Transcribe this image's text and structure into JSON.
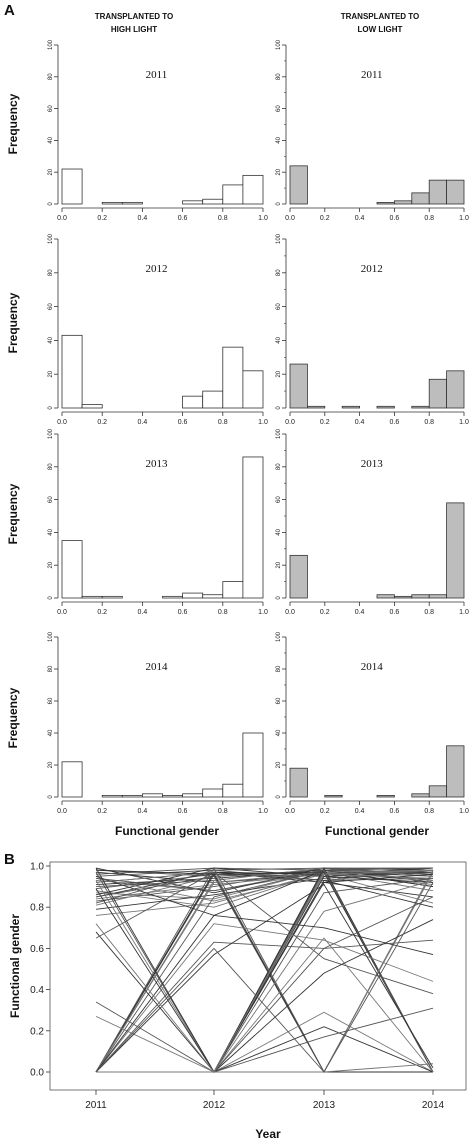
{
  "panel_a": {
    "label": "A",
    "col_titles": [
      [
        "TRANSPLANTED TO",
        "HIGH LIGHT"
      ],
      [
        "TRANSPLANTED TO",
        "LOW LIGHT"
      ]
    ],
    "y_label": "Frequency",
    "x_label": "Functional gender"
  },
  "panel_b": {
    "label": "B",
    "y_label": "Functional gender",
    "x_label": "Year"
  },
  "chart_data": [
    {
      "type": "bar",
      "panel": "A",
      "title": "2011",
      "condition": "HIGH LIGHT",
      "bin_edges": [
        0.0,
        0.1,
        0.2,
        0.3,
        0.4,
        0.5,
        0.6,
        0.7,
        0.8,
        0.9,
        1.0
      ],
      "values": [
        22,
        0,
        1,
        1,
        0,
        0,
        2,
        3,
        12,
        18
      ],
      "ylim": [
        0,
        100
      ],
      "yticks": [
        0,
        20,
        40,
        60,
        80,
        100
      ],
      "xticks": [
        "0.0",
        "0.2",
        "0.4",
        "0.6",
        "0.8",
        "1.0"
      ],
      "fill": "#ffffff"
    },
    {
      "type": "bar",
      "panel": "A",
      "title": "2011",
      "condition": "LOW LIGHT",
      "bin_edges": [
        0.0,
        0.1,
        0.2,
        0.3,
        0.4,
        0.5,
        0.6,
        0.7,
        0.8,
        0.9,
        1.0
      ],
      "values": [
        24,
        0,
        0,
        0,
        0,
        1,
        2,
        7,
        15,
        15
      ],
      "ylim": [
        0,
        100
      ],
      "yticks": [
        0,
        20,
        40,
        60,
        80,
        100
      ],
      "xticks": [
        "0.0",
        "0.2",
        "0.4",
        "0.6",
        "0.8",
        "1.0"
      ],
      "fill": "#bdbdbd"
    },
    {
      "type": "bar",
      "panel": "A",
      "title": "2012",
      "condition": "HIGH LIGHT",
      "bin_edges": [
        0.0,
        0.1,
        0.2,
        0.3,
        0.4,
        0.5,
        0.6,
        0.7,
        0.8,
        0.9,
        1.0
      ],
      "values": [
        43,
        2,
        0,
        0,
        0,
        0,
        7,
        10,
        36,
        22
      ],
      "ylim": [
        0,
        100
      ],
      "yticks": [
        0,
        20,
        40,
        60,
        80,
        100
      ],
      "xticks": [
        "0.0",
        "0.2",
        "0.4",
        "0.6",
        "0.8",
        "1.0"
      ],
      "fill": "#ffffff"
    },
    {
      "type": "bar",
      "panel": "A",
      "title": "2012",
      "condition": "LOW LIGHT",
      "bin_edges": [
        0.0,
        0.1,
        0.2,
        0.3,
        0.4,
        0.5,
        0.6,
        0.7,
        0.8,
        0.9,
        1.0
      ],
      "values": [
        26,
        1,
        0,
        1,
        0,
        1,
        0,
        1,
        17,
        22
      ],
      "ylim": [
        0,
        100
      ],
      "yticks": [
        0,
        20,
        40,
        60,
        80,
        100
      ],
      "xticks": [
        "0.0",
        "0.2",
        "0.4",
        "0.6",
        "0.8",
        "1.0"
      ],
      "fill": "#bdbdbd"
    },
    {
      "type": "bar",
      "panel": "A",
      "title": "2013",
      "condition": "HIGH LIGHT",
      "bin_edges": [
        0.0,
        0.1,
        0.2,
        0.3,
        0.4,
        0.5,
        0.6,
        0.7,
        0.8,
        0.9,
        1.0
      ],
      "values": [
        35,
        1,
        1,
        0,
        0,
        1,
        3,
        2,
        10,
        86
      ],
      "ylim": [
        0,
        100
      ],
      "yticks": [
        0,
        20,
        40,
        60,
        80,
        100
      ],
      "xticks": [
        "0.0",
        "0.2",
        "0.4",
        "0.6",
        "0.8",
        "1.0"
      ],
      "fill": "#ffffff"
    },
    {
      "type": "bar",
      "panel": "A",
      "title": "2013",
      "condition": "LOW LIGHT",
      "bin_edges": [
        0.0,
        0.1,
        0.2,
        0.3,
        0.4,
        0.5,
        0.6,
        0.7,
        0.8,
        0.9,
        1.0
      ],
      "values": [
        26,
        0,
        0,
        0,
        0,
        2,
        1,
        2,
        2,
        58
      ],
      "ylim": [
        0,
        100
      ],
      "yticks": [
        0,
        20,
        40,
        60,
        80,
        100
      ],
      "xticks": [
        "0.0",
        "0.2",
        "0.4",
        "0.6",
        "0.8",
        "1.0"
      ],
      "fill": "#bdbdbd"
    },
    {
      "type": "bar",
      "panel": "A",
      "title": "2014",
      "condition": "HIGH LIGHT",
      "bin_edges": [
        0.0,
        0.1,
        0.2,
        0.3,
        0.4,
        0.5,
        0.6,
        0.7,
        0.8,
        0.9,
        1.0
      ],
      "values": [
        22,
        0,
        1,
        1,
        2,
        1,
        2,
        5,
        8,
        40
      ],
      "ylim": [
        0,
        100
      ],
      "yticks": [
        0,
        20,
        40,
        60,
        80,
        100
      ],
      "xticks": [
        "0.0",
        "0.2",
        "0.4",
        "0.6",
        "0.8",
        "1.0"
      ],
      "fill": "#ffffff"
    },
    {
      "type": "bar",
      "panel": "A",
      "title": "2014",
      "condition": "LOW LIGHT",
      "bin_edges": [
        0.0,
        0.1,
        0.2,
        0.3,
        0.4,
        0.5,
        0.6,
        0.7,
        0.8,
        0.9,
        1.0
      ],
      "values": [
        18,
        0,
        1,
        0,
        0,
        1,
        0,
        2,
        7,
        32
      ],
      "ylim": [
        0,
        100
      ],
      "yticks": [
        0,
        20,
        40,
        60,
        80,
        100
      ],
      "xticks": [
        "0.0",
        "0.2",
        "0.4",
        "0.6",
        "0.8",
        "1.0"
      ],
      "fill": "#bdbdbd"
    },
    {
      "type": "line",
      "panel": "B",
      "x": [
        "2011",
        "2012",
        "2013",
        "2014"
      ],
      "ylim": [
        0,
        1
      ],
      "yticks": [
        "0.0",
        "0.2",
        "0.4",
        "0.6",
        "0.8",
        "1.0"
      ],
      "series": [
        {
          "values": [
            0.97,
            0.92,
            0.96,
            0.97
          ]
        },
        {
          "values": [
            0.95,
            0.98,
            0.99,
            0.98
          ]
        },
        {
          "values": [
            0.93,
            0.88,
            0.97,
            0.95
          ]
        },
        {
          "values": [
            0.91,
            0.94,
            0.98,
            0.9
          ]
        },
        {
          "values": [
            0.89,
            0.96,
            0.95,
            0.99
          ]
        },
        {
          "values": [
            0.87,
            0.84,
            0.98,
            0.96
          ]
        },
        {
          "values": [
            0.85,
            0.97,
            0.93,
            0.94
          ]
        },
        {
          "values": [
            0.83,
            0.9,
            0.99,
            0.92
          ]
        },
        {
          "values": [
            0.81,
            0.95,
            0.97,
            0.88
          ]
        },
        {
          "values": [
            0.79,
            0.86,
            0.94,
            0.97
          ]
        },
        {
          "values": [
            0.96,
            0.99,
            0.98,
            0.93
          ]
        },
        {
          "values": [
            0.94,
            0.83,
            0.96,
            0.98
          ]
        },
        {
          "values": [
            0.92,
            0.97,
            0.92,
            0.85
          ]
        },
        {
          "values": [
            0.9,
            0.93,
            0.99,
            0.99
          ]
        },
        {
          "values": [
            0.88,
            0.8,
            0.97,
            0.91
          ]
        },
        {
          "values": [
            0.86,
            0.99,
            0.95,
            0.97
          ]
        },
        {
          "values": [
            0.98,
            0.95,
            0.98,
            0.99
          ]
        },
        {
          "values": [
            0.84,
            0.91,
            0.96,
            0.82
          ]
        },
        {
          "values": [
            0.99,
            0.87,
            0.99,
            0.95
          ]
        },
        {
          "values": [
            0.82,
            0.98,
            0.93,
            0.98
          ]
        },
        {
          "values": [
            0.76,
            0.82,
            0.97,
            0.93
          ]
        },
        {
          "values": [
            0.95,
            0.76,
            0.98,
            0.9
          ]
        },
        {
          "values": [
            0.0,
            0.85,
            0.98,
            0.97
          ]
        },
        {
          "values": [
            0.0,
            0.93,
            0.99,
            0.95
          ]
        },
        {
          "values": [
            0.0,
            0.97,
            0.96,
            0.99
          ]
        },
        {
          "values": [
            0.0,
            0.0,
            0.99,
            0.96
          ]
        },
        {
          "values": [
            0.0,
            0.0,
            0.97,
            0.98
          ]
        },
        {
          "values": [
            0.0,
            0.0,
            0.95,
            0.92
          ]
        },
        {
          "values": [
            0.0,
            0.0,
            0.98,
            0.0
          ]
        },
        {
          "values": [
            0.0,
            0.0,
            0.0,
            0.0
          ]
        },
        {
          "values": [
            0.0,
            0.0,
            0.0,
            0.0
          ]
        },
        {
          "values": [
            0.97,
            0.0,
            0.98,
            0.99
          ]
        },
        {
          "values": [
            0.93,
            0.0,
            0.96,
            0.94
          ]
        },
        {
          "values": [
            0.89,
            0.0,
            0.99,
            0.0
          ]
        },
        {
          "values": [
            0.85,
            0.95,
            0.0,
            0.0
          ]
        },
        {
          "values": [
            0.92,
            0.97,
            0.0,
            0.97
          ]
        },
        {
          "values": [
            0.0,
            0.96,
            0.0,
            0.0
          ]
        },
        {
          "values": [
            0.0,
            0.99,
            0.0,
            0.98
          ]
        },
        {
          "values": [
            0.0,
            0.92,
            0.97,
            0.0
          ]
        },
        {
          "values": [
            0.98,
            0.96,
            0.97,
            0.0
          ]
        },
        {
          "values": [
            0.94,
            0.88,
            0.98,
            0.0
          ]
        },
        {
          "values": [
            0.0,
            0.0,
            0.0,
            0.98
          ]
        },
        {
          "values": [
            0.68,
            0.0,
            0.93,
            0.8
          ]
        },
        {
          "values": [
            0.34,
            0.0,
            0.87,
            0.94
          ]
        },
        {
          "values": [
            0.27,
            0.0,
            0.78,
            0.93
          ]
        },
        {
          "values": [
            0.99,
            0.0,
            0.92,
            0.96
          ]
        },
        {
          "values": [
            0.65,
            0.97,
            0.55,
            0.38
          ]
        },
        {
          "values": [
            0.0,
            0.72,
            0.64,
            0.44
          ]
        },
        {
          "values": [
            0.0,
            0.76,
            0.7,
            0.57
          ]
        },
        {
          "values": [
            0.0,
            0.63,
            0.6,
            0.64
          ]
        },
        {
          "values": [
            0.0,
            0.0,
            0.29,
            0.0
          ]
        },
        {
          "values": [
            0.0,
            0.0,
            0.22,
            0.0
          ]
        },
        {
          "values": [
            0.0,
            0.0,
            0.17,
            0.31
          ]
        },
        {
          "values": [
            0.0,
            0.0,
            0.65,
            0.0
          ]
        },
        {
          "values": [
            0.0,
            0.0,
            0.48,
            0.74
          ]
        },
        {
          "values": [
            0.0,
            0.0,
            0.6,
            0.85
          ]
        },
        {
          "values": [
            0.0,
            0.0,
            0.0,
            0.04
          ]
        },
        {
          "values": [
            0.0,
            0.57,
            0.91,
            0.02
          ]
        },
        {
          "values": [
            0.0,
            0.6,
            0.0,
            0.92
          ]
        },
        {
          "values": [
            0.72,
            0.0,
            0.96,
            0.98
          ]
        }
      ]
    }
  ]
}
